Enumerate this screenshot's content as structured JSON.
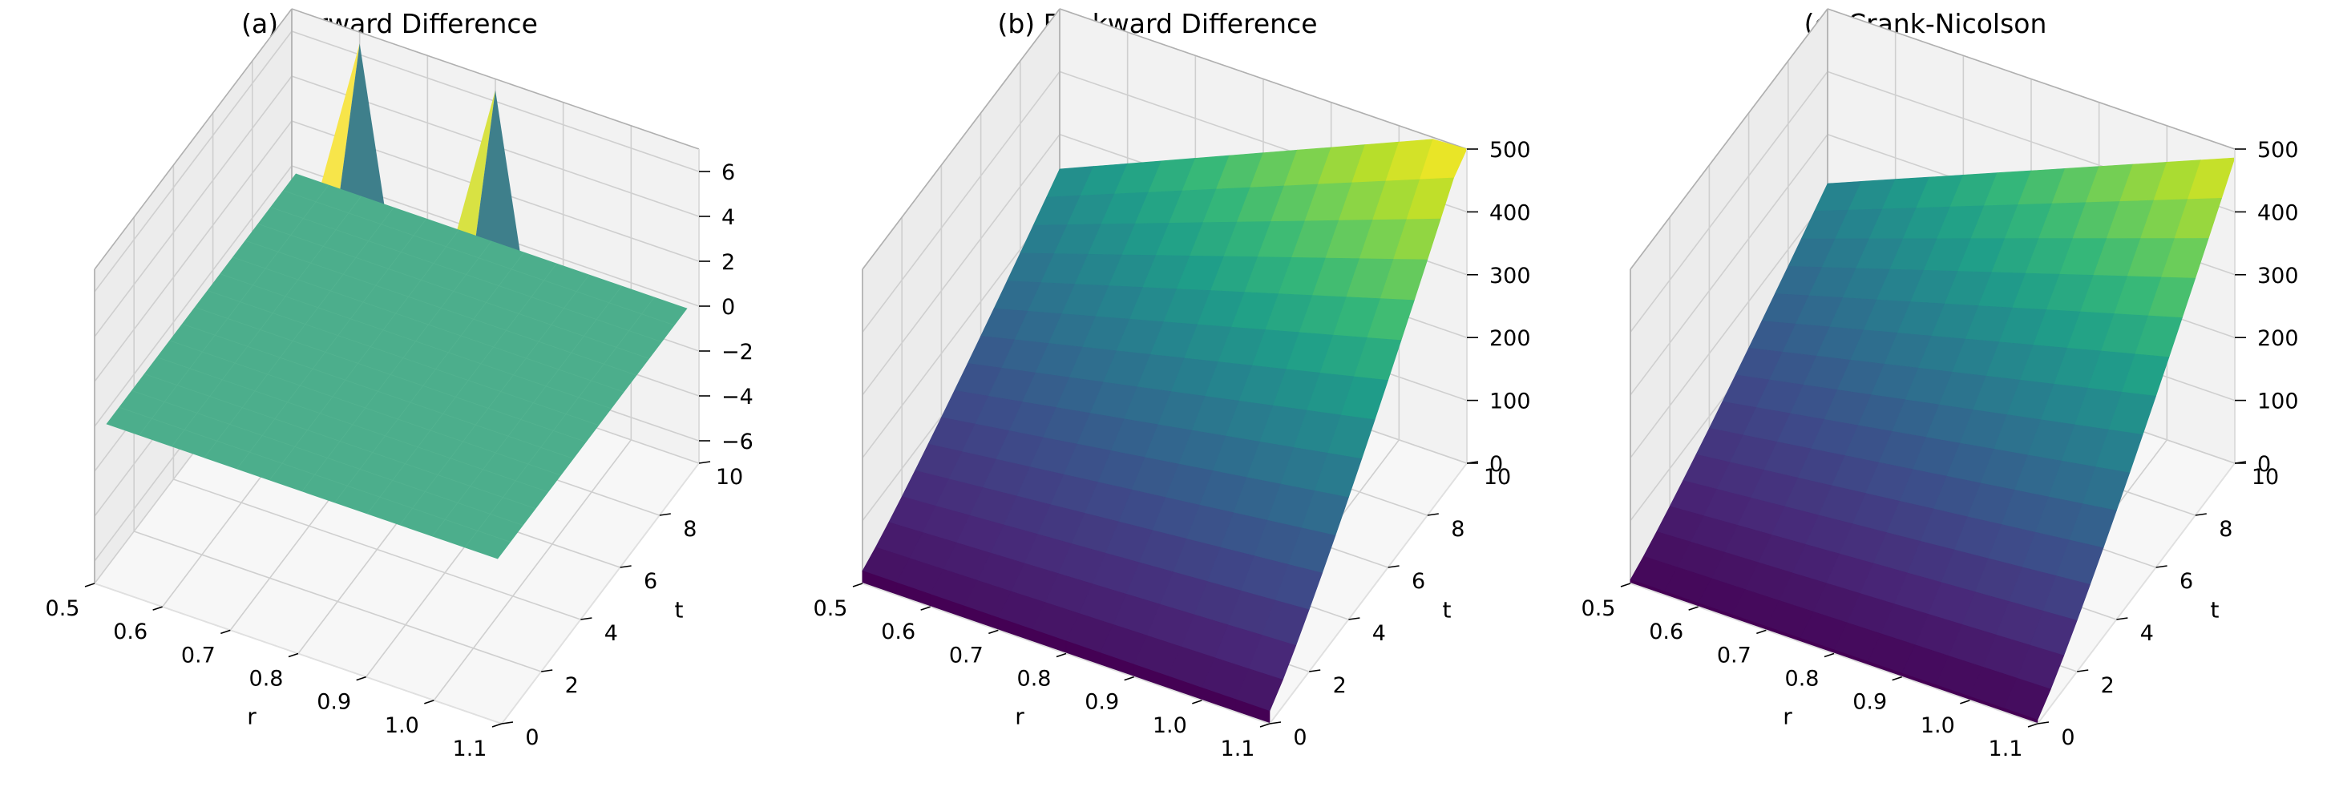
{
  "chart_data": [
    {
      "type": "surface3d",
      "title": "(a) Forward Difference",
      "xlabel": "r",
      "ylabel": "t",
      "zlabel": "-",
      "xlim": [
        0.5,
        1.1
      ],
      "ylim": [
        0,
        10
      ],
      "zlim": [
        -7,
        7
      ],
      "x_ticks": [
        "0.5",
        "0.6",
        "0.7",
        "0.8",
        "0.9",
        "1.0",
        "1.1"
      ],
      "y_ticks": [
        "0",
        "2",
        "4",
        "6",
        "8",
        "10"
      ],
      "z_ticks": [
        "−6",
        "−4",
        "−2",
        "0",
        "2",
        "4",
        "6"
      ],
      "z_tick_values": [
        -6,
        -4,
        -2,
        0,
        2,
        4,
        6
      ],
      "surface": "flat plane at z≈0 with two sharp spikes near t=10 reaching ≈ ±6.5",
      "spikes": [
        {
          "r": 0.6,
          "t": 10,
          "z": 6.5
        },
        {
          "r": 0.8,
          "t": 10,
          "z": 6.5
        }
      ],
      "colormap": "viridis"
    },
    {
      "type": "surface3d",
      "title": "(b) Backward Difference",
      "xlabel": "r",
      "ylabel": "t",
      "zlabel": "-",
      "xlim": [
        0.5,
        1.1
      ],
      "ylim": [
        0,
        10
      ],
      "zlim": [
        0,
        500
      ],
      "x_ticks": [
        "0.5",
        "0.6",
        "0.7",
        "0.8",
        "0.9",
        "1.0",
        "1.1"
      ],
      "y_ticks": [
        "0",
        "2",
        "4",
        "6",
        "8",
        "10"
      ],
      "z_ticks": [
        "0",
        "100",
        "200",
        "300",
        "400",
        "500"
      ],
      "z_tick_values": [
        0,
        100,
        200,
        300,
        400,
        500
      ],
      "surface": "rises from ≈20 at t=0 to ≈500 at t=10, largest at r=1.1",
      "colormap": "viridis"
    },
    {
      "type": "surface3d",
      "title": "(c) Crank-Nicolson",
      "xlabel": "r",
      "ylabel": "t",
      "zlabel": "-",
      "xlim": [
        0.5,
        1.1
      ],
      "ylim": [
        0,
        10
      ],
      "zlim": [
        0,
        500
      ],
      "x_ticks": [
        "0.5",
        "0.6",
        "0.7",
        "0.8",
        "0.9",
        "1.0",
        "1.1"
      ],
      "y_ticks": [
        "0",
        "2",
        "4",
        "6",
        "8",
        "10"
      ],
      "z_ticks": [
        "0",
        "100",
        "200",
        "300",
        "400",
        "500"
      ],
      "z_tick_values": [
        0,
        100,
        200,
        300,
        400,
        500
      ],
      "surface": "rises from ≈0 at t=0 to ≈500 at t=10, largest at r=1.1",
      "colormap": "viridis"
    }
  ],
  "colors": {
    "pane_side": "#ececec",
    "pane_back": "#f2f2f2",
    "pane_floor": "#f7f7f7",
    "grid": "#cfcfcf",
    "axis": "#000000"
  }
}
